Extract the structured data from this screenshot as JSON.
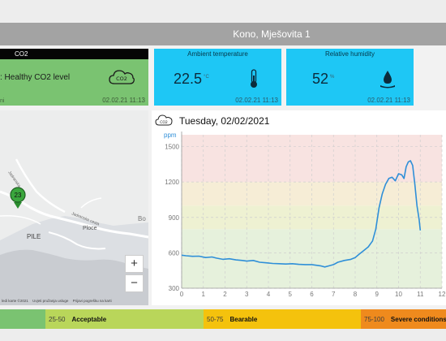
{
  "header": {
    "location_title": "Kono, Mješovita 1"
  },
  "co2_card": {
    "heading": "CO2",
    "status_text": ": Healthy CO2 level",
    "cloud_label": "CO2",
    "small_left_text": "ni",
    "timestamp": "02.02.21 11:13",
    "color": "#7ac371"
  },
  "temperature_card": {
    "heading": "Ambient temperature",
    "value": "22.5",
    "unit": "°C",
    "icon": "thermometer-icon",
    "timestamp": "02.02.21 11:13",
    "color": "#1ec7f5"
  },
  "humidity_card": {
    "heading": "Relative humidity",
    "value": "52",
    "unit": "%",
    "icon": "humidity-drop-icon",
    "timestamp": "02.02.21 11:13",
    "color": "#1ec7f5"
  },
  "map": {
    "labels": [
      "Jadranska",
      "Jadranska cesta",
      "Ploce",
      "PILE",
      "Bo"
    ],
    "marker_value": "23",
    "zoom_in": "+",
    "zoom_out": "−",
    "credits": [
      "ledi karte ©2021",
      "Uvjeti pružanja usluge",
      "Prijavi pogrešku na karti"
    ]
  },
  "chart": {
    "title": "Tuesday, 02/02/2021",
    "title_icon_label": "CO2"
  },
  "chart_data": {
    "type": "line",
    "title": "Tuesday, 02/02/2021",
    "xlabel": "",
    "ylabel": "ppm",
    "xlim": [
      0,
      12
    ],
    "ylim": [
      300,
      1600
    ],
    "x_ticks": [
      0,
      1,
      2,
      3,
      4,
      5,
      6,
      7,
      8,
      9,
      10,
      11,
      12
    ],
    "y_ticks": [
      300,
      600,
      900,
      1200,
      1500
    ],
    "grid": true,
    "line_color": "#2f8fd8",
    "bands": [
      {
        "from": 300,
        "to": 800,
        "color": "#e6f1dc"
      },
      {
        "from": 800,
        "to": 1000,
        "color": "#eef1d2"
      },
      {
        "from": 1000,
        "to": 1200,
        "color": "#f6edd6"
      },
      {
        "from": 1200,
        "to": 1600,
        "color": "#f8e3e1"
      }
    ],
    "series": [
      {
        "values": [
          [
            0.0,
            580
          ],
          [
            0.2,
            575
          ],
          [
            0.5,
            570
          ],
          [
            0.8,
            572
          ],
          [
            1.1,
            560
          ],
          [
            1.4,
            565
          ],
          [
            1.6,
            555
          ],
          [
            1.9,
            545
          ],
          [
            2.2,
            550
          ],
          [
            2.5,
            540
          ],
          [
            2.8,
            535
          ],
          [
            3.0,
            530
          ],
          [
            3.3,
            535
          ],
          [
            3.6,
            520
          ],
          [
            3.9,
            515
          ],
          [
            4.2,
            510
          ],
          [
            4.5,
            508
          ],
          [
            4.8,
            505
          ],
          [
            5.1,
            508
          ],
          [
            5.4,
            502
          ],
          [
            5.7,
            500
          ],
          [
            6.0,
            500
          ],
          [
            6.2,
            495
          ],
          [
            6.4,
            490
          ],
          [
            6.6,
            480
          ],
          [
            6.8,
            490
          ],
          [
            7.0,
            500
          ],
          [
            7.2,
            520
          ],
          [
            7.5,
            535
          ],
          [
            7.8,
            545
          ],
          [
            8.0,
            560
          ],
          [
            8.2,
            590
          ],
          [
            8.4,
            620
          ],
          [
            8.6,
            650
          ],
          [
            8.8,
            700
          ],
          [
            8.95,
            800
          ],
          [
            9.1,
            980
          ],
          [
            9.25,
            1100
          ],
          [
            9.4,
            1180
          ],
          [
            9.55,
            1230
          ],
          [
            9.7,
            1240
          ],
          [
            9.85,
            1210
          ],
          [
            10.0,
            1270
          ],
          [
            10.15,
            1260
          ],
          [
            10.25,
            1230
          ],
          [
            10.35,
            1330
          ],
          [
            10.45,
            1370
          ],
          [
            10.55,
            1380
          ],
          [
            10.65,
            1340
          ],
          [
            10.75,
            1180
          ],
          [
            10.85,
            1000
          ],
          [
            10.95,
            880
          ],
          [
            11.0,
            790
          ]
        ]
      }
    ]
  },
  "legend_bar": {
    "segments": [
      {
        "range": "",
        "label": "",
        "color": "#7ac371"
      },
      {
        "range": "25-50",
        "label": "Acceptable",
        "color": "#b9d65a"
      },
      {
        "range": "50-75",
        "label": "Bearable",
        "color": "#f4c20d"
      },
      {
        "range": "75-100",
        "label": "Severe conditions",
        "color": "#ef8a1d"
      }
    ]
  }
}
